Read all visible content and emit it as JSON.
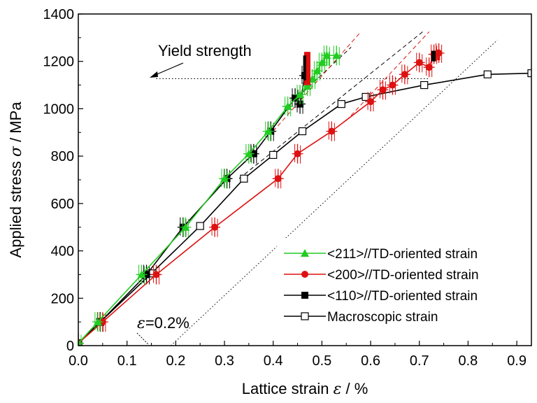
{
  "chart_data": {
    "type": "line",
    "xlabel": "Lattice strain ε / %",
    "xlabel_parts": {
      "prefix": "Lattice strain ",
      "symbol": "ε",
      "suffix": " / %"
    },
    "ylabel": "Applied stress σ / MPa",
    "ylabel_parts": {
      "prefix": "Applied stress ",
      "symbol": "σ",
      "suffix": " / MPa"
    },
    "xlim": [
      0.0,
      0.93
    ],
    "ylim": [
      0,
      1400
    ],
    "x_ticks": [
      "0.0",
      "0.1",
      "0.2",
      "0.3",
      "0.4",
      "0.5",
      "0.6",
      "0.7",
      "0.8",
      "0.9"
    ],
    "x_tick_values": [
      0.0,
      0.1,
      0.2,
      0.3,
      0.4,
      0.5,
      0.6,
      0.7,
      0.8,
      0.9
    ],
    "y_ticks": [
      "0",
      "200",
      "400",
      "600",
      "800",
      "1000",
      "1200",
      "1400"
    ],
    "y_tick_values": [
      0,
      200,
      400,
      600,
      800,
      1000,
      1200,
      1400
    ],
    "grid": false,
    "legend_position": "bottom-right",
    "annotations": {
      "yield_label": "Yield strength",
      "yield_stress": 1127,
      "offset_label_parts": {
        "symbol": "ε",
        "suffix": "=0.2%"
      },
      "offset_strain": 0.2
    },
    "series": [
      {
        "name": "<211>//TD-oriented strain",
        "color": "#22cc22",
        "marker": "triangle-filled",
        "x": [
          0.0,
          0.04,
          0.13,
          0.22,
          0.3,
          0.35,
          0.39,
          0.43,
          0.455,
          0.47,
          0.48,
          0.49,
          0.5,
          0.51,
          0.53
        ],
        "y": [
          10,
          100,
          300,
          500,
          705,
          810,
          905,
          1010,
          1060,
          1095,
          1125,
          1160,
          1195,
          1225,
          1225
        ]
      },
      {
        "name": "<200>//TD-oriented strain",
        "color": "#dd1111",
        "marker": "circle-filled",
        "x": [
          0.0,
          0.05,
          0.16,
          0.28,
          0.41,
          0.45,
          0.52,
          0.6,
          0.625,
          0.645,
          0.67,
          0.7,
          0.72,
          0.73,
          0.74
        ],
        "y": [
          10,
          100,
          300,
          500,
          705,
          810,
          905,
          1030,
          1080,
          1100,
          1145,
          1195,
          1175,
          1230,
          1235
        ]
      },
      {
        "name": "<110>//TD-oriented strain",
        "color": "#000000",
        "marker": "square-filled",
        "x": [
          0.0,
          0.045,
          0.14,
          0.215,
          0.305,
          0.36,
          0.395,
          0.445,
          0.455,
          0.465
        ],
        "y": [
          10,
          100,
          300,
          500,
          705,
          810,
          905,
          1045,
          1020,
          1140
        ]
      },
      {
        "name": "Macroscopic strain",
        "color": "#000000",
        "marker": "square-open",
        "x": [
          0.0,
          0.045,
          0.15,
          0.25,
          0.34,
          0.4,
          0.46,
          0.54,
          0.59,
          0.71,
          0.84,
          0.93
        ],
        "y": [
          10,
          100,
          305,
          505,
          705,
          805,
          905,
          1020,
          1050,
          1100,
          1145,
          1150
        ]
      }
    ],
    "vertical_bar_stacks": [
      {
        "color": "#dd1111",
        "x": [
          0.465,
          0.467,
          0.469,
          0.471,
          0.473,
          0.475
        ],
        "y_from": 1100,
        "y_to": 1240
      },
      {
        "color": "#000000",
        "x": [
          0.463,
          0.466
        ],
        "y_from": 1120,
        "y_to": 1225
      },
      {
        "color": "#000000",
        "x": [
          0.726,
          0.729,
          0.732
        ],
        "y_from": 1200,
        "y_to": 1245
      },
      {
        "color": "#dd1111",
        "x": [
          0.735,
          0.738,
          0.741
        ],
        "y_from": 1205,
        "y_to": 1250
      },
      {
        "color": "#22cc22",
        "x": [
          0.505,
          0.51,
          0.515
        ],
        "y_from": 1180,
        "y_to": 1240
      }
    ],
    "dashed_guides": [
      {
        "color": "#000000",
        "from": [
          0.43,
          1010
        ],
        "to": [
          0.56,
          1260
        ]
      },
      {
        "color": "#dd1111",
        "from": [
          0.4,
          905
        ],
        "to": [
          0.58,
          1325
        ]
      },
      {
        "color": "#000000",
        "from": [
          0.33,
          705
        ],
        "to": [
          0.71,
          1330
        ]
      },
      {
        "color": "#dd1111",
        "from": [
          0.55,
          950
        ],
        "to": [
          0.72,
          1325
        ]
      }
    ],
    "offset_line": {
      "color": "#000000",
      "from": [
        0.19,
        0
      ],
      "to": [
        0.86,
        1290
      ]
    }
  }
}
